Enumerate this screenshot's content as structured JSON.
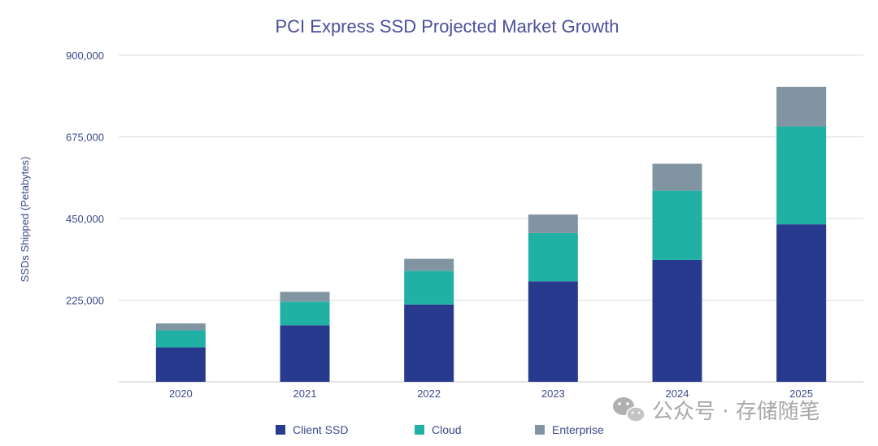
{
  "chart_data": {
    "type": "bar",
    "stacked": true,
    "title": "PCI Express SSD Projected Market Growth",
    "xlabel": "",
    "ylabel": "SSDs Shipped (Petabytes)",
    "ylim": [
      0,
      900000
    ],
    "yticks": [
      225000,
      450000,
      675000,
      900000
    ],
    "ytick_labels": [
      "225,000",
      "450,000",
      "675,000",
      "900,000"
    ],
    "grid": true,
    "legend_position": "bottom",
    "categories": [
      "2020",
      "2021",
      "2022",
      "2023",
      "2024",
      "2025"
    ],
    "series": [
      {
        "name": "Client SSD",
        "color": "#283a8e",
        "values": [
          95000,
          156000,
          213000,
          277000,
          336000,
          434000
        ]
      },
      {
        "name": "Cloud",
        "color": "#21b1a4",
        "values": [
          47000,
          65000,
          93000,
          133000,
          191000,
          270000
        ]
      },
      {
        "name": "Enterprise",
        "color": "#8095a1",
        "values": [
          19000,
          27000,
          33000,
          51000,
          74000,
          109000
        ]
      }
    ]
  },
  "colors": {
    "title": "#4b4f9a",
    "axis_text": "#3d4a8a",
    "grid": "#dcdcdc"
  },
  "watermark": {
    "icon": "wechat-icon",
    "text": "公众号 · 存储随笔"
  }
}
